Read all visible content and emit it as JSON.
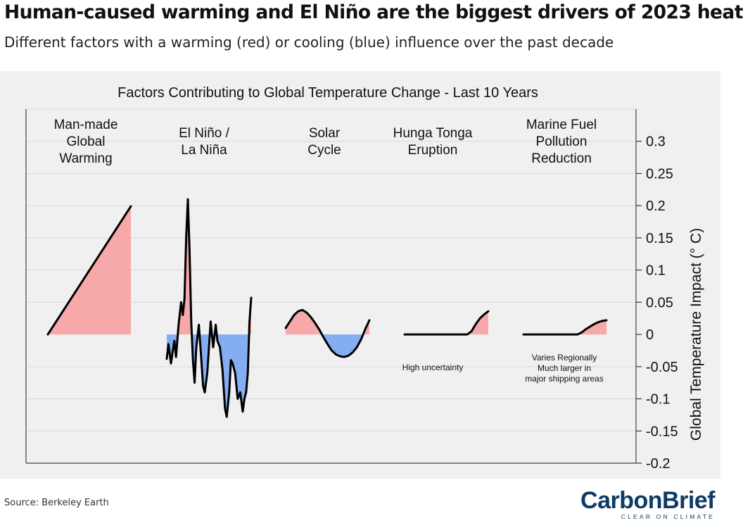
{
  "header": {
    "title": "Human-caused warming and El Niño are the biggest drivers of 2023 heat",
    "subtitle": "Different factors with a warming (red) or cooling (blue) influence over the past decade"
  },
  "footer": {
    "source": "Source: Berkeley Earth",
    "brand_name": "CarbonBrief",
    "brand_tagline": "CLEAR ON CLIMATE"
  },
  "colors": {
    "warming": "#f7a8a8",
    "cooling": "#85aef2",
    "line": "#000000",
    "brand": "#0e3b64"
  },
  "chart_data": {
    "type": "area",
    "title": "Factors Contributing to Global Temperature Change - Last 10 Years",
    "ylabel": "Global Temperature Impact (° C)",
    "ylim": [
      -0.2,
      0.35
    ],
    "yticks": [
      0.3,
      0.25,
      0.2,
      0.15,
      0.1,
      0.05,
      0,
      -0.05,
      -0.1,
      -0.15,
      -0.2
    ],
    "ytick_labels": [
      "0.3",
      "0.25",
      "0.2",
      "0.15",
      "0.1",
      "0.05",
      "0",
      "-0.05",
      "-0.1",
      "-0.15",
      "-0.2"
    ],
    "grid": true,
    "series": [
      {
        "name": "Man-made Global Warming",
        "label_lines": [
          "Man-made",
          "Global",
          "Warming"
        ],
        "x": [
          0,
          1
        ],
        "values": [
          0,
          0.199
        ]
      },
      {
        "name": "El Niño / La Niña",
        "label_lines": [
          "El Niño /",
          "La Niña"
        ],
        "x": [
          0,
          0.02,
          0.05,
          0.09,
          0.11,
          0.14,
          0.17,
          0.19,
          0.21,
          0.23,
          0.25,
          0.27,
          0.29,
          0.31,
          0.33,
          0.35,
          0.38,
          0.41,
          0.43,
          0.45,
          0.48,
          0.52,
          0.55,
          0.58,
          0.6,
          0.63,
          0.66,
          0.69,
          0.71,
          0.74,
          0.76,
          0.78,
          0.81,
          0.84,
          0.87,
          0.9,
          0.92,
          0.94,
          0.96,
          0.98,
          1.0
        ],
        "values": [
          -0.038,
          -0.015,
          -0.045,
          -0.01,
          -0.035,
          0.015,
          0.05,
          0.03,
          0.055,
          0.15,
          0.21,
          0.13,
          0.02,
          -0.04,
          -0.075,
          -0.02,
          0.015,
          -0.04,
          -0.08,
          -0.09,
          -0.06,
          0.02,
          -0.02,
          0.015,
          -0.01,
          -0.02,
          -0.055,
          -0.115,
          -0.128,
          -0.09,
          -0.04,
          -0.045,
          -0.06,
          -0.1,
          -0.09,
          -0.12,
          -0.1,
          -0.09,
          -0.06,
          0.02,
          0.057
        ]
      },
      {
        "name": "Solar Cycle",
        "label_lines": [
          "Solar",
          "Cycle"
        ],
        "x": [
          0,
          0.05,
          0.1,
          0.15,
          0.2,
          0.25,
          0.3,
          0.35,
          0.4,
          0.45,
          0.5,
          0.55,
          0.6,
          0.65,
          0.7,
          0.75,
          0.8,
          0.85,
          0.9,
          0.95,
          1.0
        ],
        "values": [
          0.01,
          0.02,
          0.03,
          0.036,
          0.038,
          0.034,
          0.027,
          0.018,
          0.008,
          -0.004,
          -0.015,
          -0.025,
          -0.031,
          -0.034,
          -0.035,
          -0.033,
          -0.028,
          -0.02,
          -0.008,
          0.008,
          0.022
        ]
      },
      {
        "name": "Hunga Tonga Eruption",
        "label_lines": [
          "Hunga Tonga",
          "Eruption"
        ],
        "annotation_lines": [
          "High uncertainty"
        ],
        "x": [
          0,
          0.25,
          0.5,
          0.75,
          0.8,
          0.85,
          0.9,
          0.95,
          1.0
        ],
        "values": [
          0,
          0,
          0,
          0,
          0.005,
          0.016,
          0.025,
          0.031,
          0.036
        ]
      },
      {
        "name": "Marine Fuel Pollution Reduction",
        "label_lines": [
          "Marine Fuel",
          "Pollution",
          "Reduction"
        ],
        "annotation_lines": [
          "Varies Regionally",
          "Much larger in",
          "major shipping areas"
        ],
        "x": [
          0,
          0.25,
          0.5,
          0.65,
          0.7,
          0.75,
          0.8,
          0.85,
          0.9,
          0.95,
          1.0
        ],
        "values": [
          0,
          0,
          0,
          0,
          0.003,
          0.008,
          0.012,
          0.016,
          0.019,
          0.021,
          0.022
        ]
      }
    ]
  }
}
